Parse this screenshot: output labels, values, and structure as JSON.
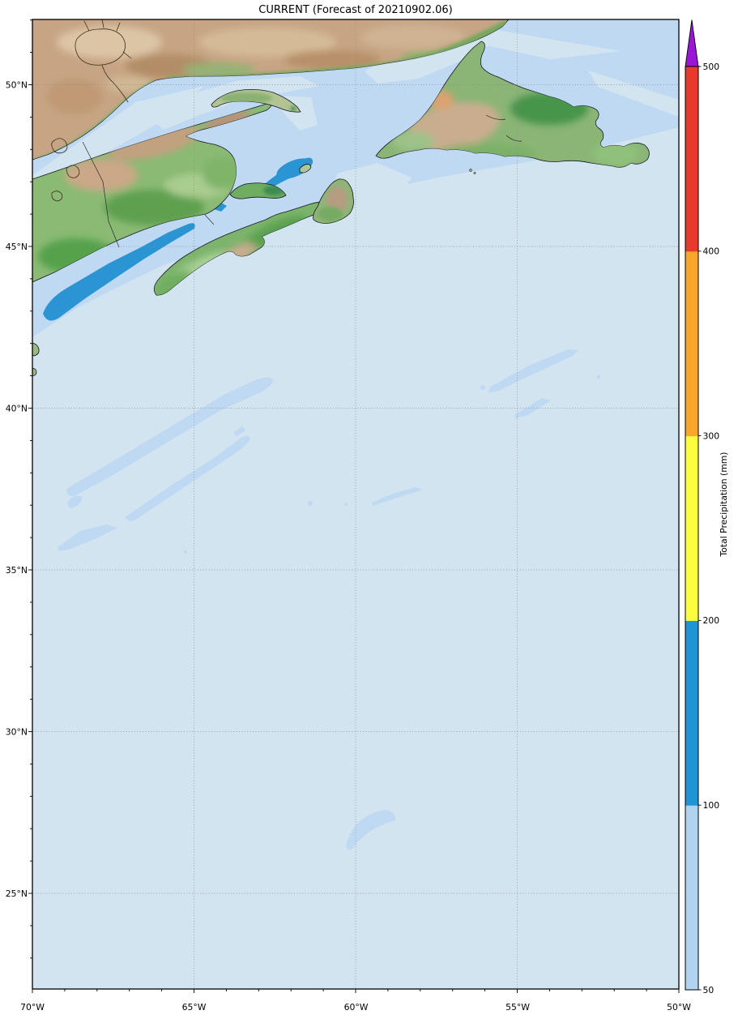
{
  "title": "CURRENT (Forecast of 20210902.06)",
  "axes": {
    "lat_labels": [
      "50°N",
      "45°N",
      "40°N",
      "35°N",
      "30°N",
      "25°N"
    ],
    "lon_labels": [
      "70°W",
      "65°W",
      "60°W",
      "55°W",
      "50°W"
    ]
  },
  "colorbar": {
    "label": "Total Precipitation (mm)",
    "tick_labels": [
      "500",
      "400",
      "300",
      "200",
      "100",
      "50"
    ],
    "segments": [
      {
        "range": "50-100",
        "color": "#b0d3f0"
      },
      {
        "range": "100-200",
        "color": "#2095d6"
      },
      {
        "range": "200-300",
        "color": "#fdfd3f"
      },
      {
        "range": "300-400",
        "color": "#f9a62c"
      },
      {
        "range": "400-500",
        "color": "#e7392d"
      }
    ],
    "overflow_arrow_color": "#9a15d6"
  },
  "map_colors": {
    "ocean": "#d3e4f1",
    "precip_50_100": "#c0d9f3",
    "precip_100_200": "#2b95d4",
    "land_tan": "#c7a584",
    "land_green_dark": "#8aba74",
    "land_green_ns": "#7cb46c",
    "land_green_nf": "#8ab576",
    "land_pale": "#b2c493",
    "lake_water": "#d5e6f2"
  }
}
